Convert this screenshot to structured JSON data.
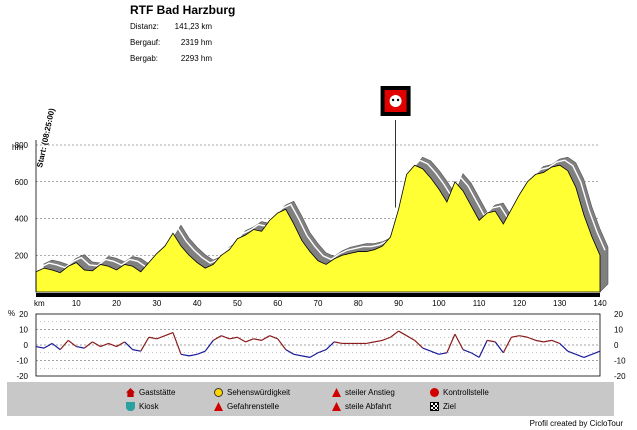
{
  "header": {
    "title": "RTF Bad Harzburg",
    "stats": [
      {
        "label": "Distanz:",
        "value": "141,23 km"
      },
      {
        "label": "Bergauf:",
        "value": "2319 hm"
      },
      {
        "label": "Bergab:",
        "value": "2293 hm"
      }
    ]
  },
  "start_label": "Start: (08:25:00)",
  "colors": {
    "profile_fill": "#ffff33",
    "shadow": "#808080",
    "positive": "#8b1a1a",
    "negative": "#1a1a9b",
    "legend_bg": "#c8c8c8"
  },
  "legend": [
    {
      "label": "Gaststätte",
      "icon": "house-icon"
    },
    {
      "label": "Kiosk",
      "icon": "cup-icon"
    },
    {
      "label": "Sehenswürdigkeit",
      "icon": "smiley-icon"
    },
    {
      "label": "Gefahrenstelle",
      "icon": "warning-icon"
    },
    {
      "label": "steiler Anstieg",
      "icon": "steep-climb-icon"
    },
    {
      "label": "steile Abfahrt",
      "icon": "steep-descent-icon"
    },
    {
      "label": "Kontrollstelle",
      "icon": "checkpoint-icon"
    },
    {
      "label": "Ziel",
      "icon": "finish-flag-icon"
    }
  ],
  "footer": "Profil created by CicloTour",
  "chart_data": [
    {
      "type": "area",
      "xlabel": "km",
      "ylabel": "hm",
      "xlim": [
        0,
        140
      ],
      "ylim": [
        0,
        800
      ],
      "x_ticks": [
        10,
        20,
        30,
        40,
        50,
        60,
        70,
        80,
        90,
        100,
        110,
        120,
        130,
        140
      ],
      "y_ticks": [
        200,
        400,
        600,
        800
      ],
      "marker": {
        "km": 90,
        "label": "checkpoint",
        "icon": "checkpoint-icon"
      },
      "x": [
        0,
        2,
        4,
        6,
        8,
        10,
        12,
        14,
        16,
        18,
        20,
        22,
        24,
        26,
        28,
        30,
        32,
        34,
        36,
        38,
        40,
        42,
        44,
        46,
        48,
        50,
        52,
        54,
        56,
        58,
        60,
        62,
        64,
        66,
        68,
        70,
        72,
        74,
        76,
        78,
        80,
        82,
        84,
        86,
        88,
        90,
        92,
        94,
        96,
        98,
        100,
        102,
        104,
        106,
        108,
        110,
        112,
        114,
        116,
        118,
        120,
        122,
        124,
        126,
        128,
        130,
        132,
        134,
        136,
        138,
        140
      ],
      "y": [
        110,
        130,
        120,
        105,
        140,
        160,
        120,
        115,
        150,
        140,
        120,
        150,
        140,
        110,
        160,
        210,
        250,
        320,
        250,
        200,
        160,
        130,
        150,
        200,
        230,
        290,
        310,
        340,
        330,
        390,
        430,
        450,
        370,
        280,
        220,
        170,
        150,
        180,
        200,
        210,
        220,
        220,
        230,
        250,
        300,
        450,
        640,
        690,
        670,
        620,
        560,
        490,
        600,
        550,
        470,
        390,
        430,
        440,
        370,
        450,
        530,
        600,
        640,
        650,
        680,
        690,
        660,
        570,
        420,
        300,
        200
      ]
    },
    {
      "type": "line",
      "xlabel": "km",
      "ylabel": "%",
      "xlim": [
        0,
        140
      ],
      "ylim": [
        -20,
        20
      ],
      "y_ticks": [
        -20,
        -10,
        0,
        10,
        20
      ],
      "x": [
        0,
        2,
        4,
        6,
        8,
        10,
        12,
        14,
        16,
        18,
        20,
        22,
        24,
        26,
        28,
        30,
        32,
        34,
        36,
        38,
        40,
        42,
        44,
        46,
        48,
        50,
        52,
        54,
        56,
        58,
        60,
        62,
        64,
        66,
        68,
        70,
        72,
        74,
        76,
        78,
        80,
        82,
        84,
        86,
        88,
        90,
        92,
        94,
        96,
        98,
        100,
        102,
        104,
        106,
        108,
        110,
        112,
        114,
        116,
        118,
        120,
        122,
        124,
        126,
        128,
        130,
        132,
        134,
        136,
        138,
        140
      ],
      "y": [
        -1,
        -2,
        1,
        -3,
        3,
        -1,
        -2,
        2,
        -1,
        1,
        -1,
        2,
        -3,
        -4,
        5,
        4,
        6,
        8,
        -6,
        -7,
        -6,
        -4,
        3,
        6,
        4,
        5,
        2,
        4,
        3,
        6,
        4,
        -3,
        -6,
        -7,
        -8,
        -5,
        -3,
        2,
        1,
        1,
        1,
        1,
        2,
        3,
        5,
        9,
        6,
        3,
        -2,
        -4,
        -6,
        -5,
        7,
        -3,
        -5,
        -8,
        3,
        2,
        -5,
        5,
        6,
        5,
        3,
        2,
        3,
        1,
        -4,
        -6,
        -8,
        -6,
        -4
      ]
    }
  ]
}
